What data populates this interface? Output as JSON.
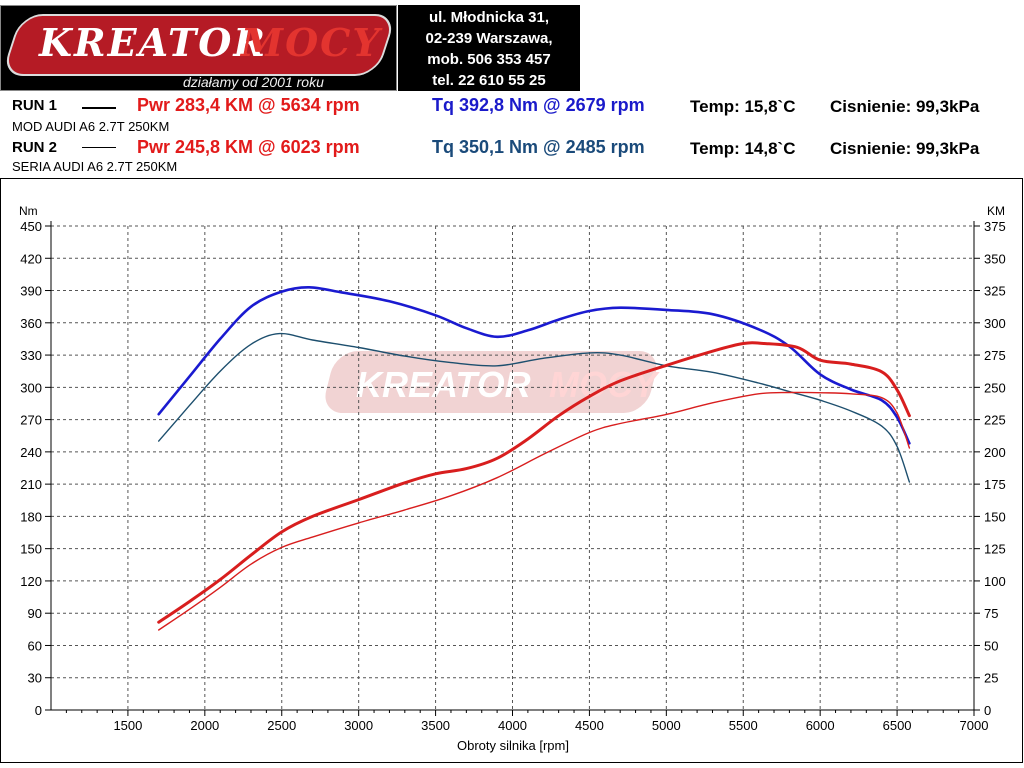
{
  "header": {
    "logo": {
      "word1": "KreatorMocy",
      "tagline": "działamy od 2001 roku"
    },
    "address": [
      "ul. Młodnicka 31,",
      "02-239  Warszawa,",
      "mob.  506 353 457",
      "tel.  22 610 55 25"
    ],
    "run1": {
      "label": "RUN 1",
      "pwr": "Pwr  283,4 KM @ 5634 rpm",
      "tq": "Tq 392,8 Nm @ 2679 rpm",
      "temp": "Temp: 15,8`C",
      "pressure": "Cisnienie: 99,3kPa",
      "desc": "MOD AUDI A6 2.7T 250KM"
    },
    "run2": {
      "label": "RUN 2",
      "pwr": "Pwr  245,8 KM @ 6023 rpm",
      "tq": "Tq 350,1 Nm @ 2485 rpm",
      "temp": "Temp: 14,8`C",
      "pressure": "Cisnienie: 99,3kPa",
      "desc": "SERIA AUDI A6 2.7T 250KM"
    }
  },
  "chart_data": {
    "type": "line",
    "xlabel": "Obroty silnika [rpm]",
    "ylabel_left": "Nm",
    "ylabel_right": "KM",
    "xlim": [
      1000,
      7000
    ],
    "ylim_left": [
      0,
      450
    ],
    "ylim_right": [
      0,
      375
    ],
    "x_ticks": [
      1500,
      2000,
      2500,
      3000,
      3500,
      4000,
      4500,
      5000,
      5500,
      6000,
      6500,
      7000
    ],
    "y_ticks_left": [
      0,
      30,
      60,
      90,
      120,
      150,
      180,
      210,
      240,
      270,
      300,
      330,
      360,
      390,
      420,
      450
    ],
    "y_ticks_right": [
      0,
      25,
      50,
      75,
      100,
      125,
      150,
      175,
      200,
      225,
      250,
      275,
      300,
      325,
      350,
      375
    ],
    "grid": true,
    "colors": {
      "tq_run1": "#1a1ad0",
      "tq_run2": "#1d4f6e",
      "pwr_run1": "#d81e1e",
      "pwr_run2": "#d81e1e"
    },
    "series": [
      {
        "name": "RUN 1 Tq",
        "axis": "left",
        "x": [
          1700,
          1900,
          2100,
          2300,
          2500,
          2679,
          2900,
          3200,
          3500,
          3700,
          3900,
          4100,
          4300,
          4500,
          4700,
          5000,
          5300,
          5600,
          5800,
          6000,
          6200,
          6400,
          6500,
          6580
        ],
        "y": [
          275,
          310,
          345,
          375,
          389,
          393,
          388,
          380,
          367,
          355,
          347,
          353,
          363,
          371,
          374,
          372,
          368,
          354,
          338,
          312,
          298,
          288,
          272,
          248
        ]
      },
      {
        "name": "RUN 2 Tq",
        "axis": "left",
        "x": [
          1700,
          1900,
          2100,
          2300,
          2485,
          2700,
          3000,
          3300,
          3600,
          3900,
          4200,
          4500,
          4700,
          5000,
          5300,
          5600,
          5800,
          6000,
          6200,
          6400,
          6500,
          6580
        ],
        "y": [
          250,
          283,
          315,
          340,
          350,
          344,
          337,
          329,
          323,
          320,
          327,
          332,
          330,
          320,
          314,
          304,
          296,
          288,
          278,
          264,
          245,
          212
        ]
      },
      {
        "name": "RUN 1 Pwr",
        "axis": "right",
        "x": [
          1700,
          1900,
          2100,
          2300,
          2500,
          2700,
          3000,
          3300,
          3500,
          3700,
          3900,
          4100,
          4300,
          4500,
          4700,
          5000,
          5300,
          5500,
          5634,
          5850,
          6000,
          6200,
          6400,
          6500,
          6580
        ],
        "y": [
          68,
          84,
          101,
          120,
          138,
          150,
          163,
          176,
          183,
          187,
          195,
          210,
          228,
          243,
          255,
          267,
          278,
          284,
          284,
          281,
          271,
          268,
          262,
          248,
          228
        ]
      },
      {
        "name": "RUN 2 Pwr",
        "axis": "right",
        "x": [
          1700,
          1900,
          2100,
          2300,
          2500,
          2700,
          3000,
          3300,
          3600,
          3900,
          4200,
          4500,
          4700,
          5000,
          5300,
          5600,
          5800,
          6023,
          6200,
          6400,
          6500,
          6580
        ],
        "y": [
          62,
          78,
          95,
          113,
          126,
          134,
          145,
          155,
          166,
          180,
          198,
          215,
          222,
          229,
          238,
          245,
          246,
          245.8,
          245,
          242,
          230,
          203
        ]
      }
    ]
  }
}
